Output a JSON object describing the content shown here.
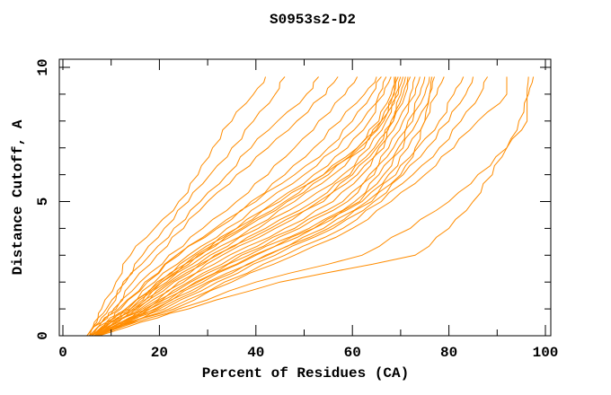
{
  "chart_data": {
    "type": "line",
    "title": "S0953s2-D2",
    "xlabel": "Percent of Residues (CA)",
    "ylabel": "Distance Cutoff, A",
    "xlim": [
      0,
      100
    ],
    "ylim": [
      0,
      10
    ],
    "x_major_ticks": [
      0,
      20,
      40,
      60,
      80,
      100
    ],
    "x_minor_ticks": [
      10,
      30,
      50,
      70,
      90
    ],
    "y_major_ticks": [
      0,
      5,
      10
    ],
    "y_minor_ticks": [
      1,
      2,
      3,
      4,
      6,
      7,
      8,
      9
    ],
    "grid": false,
    "legend": "none",
    "line_color": "#ff8c00",
    "frame_color": "#000000",
    "background_color": "#ffffff",
    "cutoffs": [
      0,
      0.5,
      1,
      2,
      3,
      4,
      5,
      6,
      7,
      8,
      9,
      9.65
    ],
    "series": [
      [
        5,
        6.5,
        8,
        11,
        14,
        19,
        24,
        28,
        31,
        35,
        39.5,
        42
      ],
      [
        5.5,
        7,
        9,
        12.5,
        16.5,
        21,
        26,
        30.5,
        35,
        39.5,
        44,
        46
      ],
      [
        5,
        7.5,
        9.5,
        13,
        18,
        23,
        28.5,
        34,
        39,
        44.5,
        50.5,
        53
      ],
      [
        6,
        8,
        10.5,
        14.5,
        19.5,
        25,
        30,
        36,
        42.5,
        48.5,
        54.5,
        57
      ],
      [
        5.5,
        8,
        11,
        16,
        22,
        29,
        36,
        42.5,
        48,
        53,
        58.5,
        61
      ],
      [
        6,
        9,
        12,
        17.5,
        24,
        31.5,
        39,
        46,
        52,
        57.5,
        62.5,
        65
      ],
      [
        5,
        8,
        11.5,
        17,
        23.5,
        32,
        40,
        48,
        55,
        60,
        64,
        66
      ],
      [
        6,
        9.5,
        13,
        19,
        26,
        34,
        42,
        50,
        57,
        62,
        65.5,
        67
      ],
      [
        6.5,
        10,
        14,
        20,
        27.5,
        36,
        44,
        52,
        59,
        63.5,
        66.5,
        68
      ],
      [
        6,
        9,
        13.5,
        20.5,
        28,
        37,
        46,
        54,
        61,
        66,
        68.7,
        68.7
      ],
      [
        5.5,
        9.5,
        14,
        20.5,
        28.5,
        37.5,
        46.5,
        55,
        61,
        65.5,
        68,
        69
      ],
      [
        5.5,
        9,
        13,
        19.5,
        27,
        36,
        45,
        54,
        61.5,
        66,
        68.5,
        69.5
      ],
      [
        6.5,
        10,
        14.5,
        21.5,
        29.5,
        39,
        48,
        56,
        62.5,
        66.5,
        69,
        70
      ],
      [
        7,
        11,
        15,
        22,
        30.5,
        40.5,
        50,
        58,
        63.5,
        67,
        69.5,
        70.5
      ],
      [
        6,
        10,
        15,
        22.5,
        31.5,
        42,
        52,
        59.5,
        64.5,
        68,
        70,
        71
      ],
      [
        6.5,
        10.5,
        15.5,
        23,
        32,
        43,
        53,
        60,
        65,
        68.5,
        70.5,
        71.5
      ],
      [
        7,
        11.5,
        16,
        24,
        33,
        44,
        54,
        61,
        65.5,
        68.5,
        71,
        72
      ],
      [
        6.5,
        11,
        16.5,
        25,
        34.5,
        46,
        56,
        62,
        66.5,
        69.5,
        72,
        73
      ],
      [
        7.5,
        12,
        17,
        26,
        36,
        48,
        58,
        63.5,
        67.5,
        70.5,
        73,
        74
      ],
      [
        7,
        12,
        17.5,
        26.5,
        37,
        49,
        59,
        64.5,
        68.5,
        71.5,
        74,
        75
      ],
      [
        7.5,
        12.5,
        18,
        27.5,
        38.5,
        51,
        60.5,
        65.5,
        69.5,
        72.5,
        75,
        76
      ],
      [
        7,
        13.5,
        20,
        30.5,
        42.5,
        55,
        64,
        70,
        73,
        75,
        76,
        76.5
      ],
      [
        7,
        12.5,
        19,
        29,
        40,
        52,
        61.5,
        66.5,
        70.5,
        73.5,
        76,
        77
      ],
      [
        6.5,
        12,
        18,
        28,
        39.5,
        52,
        62,
        67.5,
        71.5,
        75,
        77.5,
        79
      ],
      [
        7,
        13,
        19.5,
        30,
        42,
        54,
        63,
        69,
        73.5,
        78,
        81,
        83
      ],
      [
        7,
        13.5,
        21,
        32,
        44,
        56,
        64.5,
        70.5,
        75.5,
        80,
        83.5,
        85
      ],
      [
        7.5,
        14.5,
        22,
        33.5,
        46,
        58,
        66,
        72.5,
        78,
        82.5,
        86.5,
        88
      ],
      [
        7,
        14,
        23,
        35,
        48,
        60,
        68,
        75,
        81,
        86,
        92,
        92
      ],
      [
        7,
        15,
        24,
        40,
        62,
        72,
        80,
        86,
        92,
        96.2,
        96.2,
        96.5
      ],
      [
        7.5,
        16,
        26,
        45,
        73,
        80,
        85,
        89,
        92,
        94.5,
        96.5,
        97.5
      ]
    ]
  }
}
